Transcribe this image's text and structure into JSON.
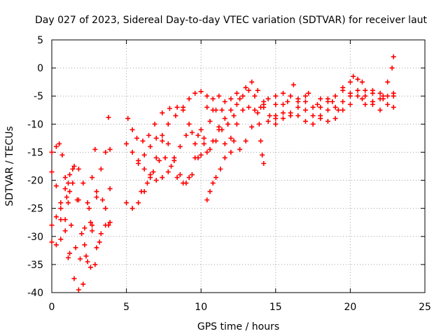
{
  "chart_data": {
    "type": "scatter",
    "title": "Day 027 of 2023, Sidereal Day-to-day VTEC variation (SDTVAR) for receiver laut",
    "xlabel": "GPS time / hours",
    "ylabel": "SDTVAR / TECUs",
    "xlim": [
      0,
      25
    ],
    "ylim": [
      -40,
      5
    ],
    "xticks": [
      "0",
      "5",
      "10",
      "15",
      "20",
      "25"
    ],
    "yticks": [
      "5",
      "0",
      "-5",
      "-10",
      "-15",
      "-20",
      "-25",
      "-30",
      "-35",
      "-40"
    ],
    "grid": true,
    "marker": "+",
    "color": "#ff0000",
    "series": [
      {
        "points": [
          [
            0.0,
            -28.0
          ],
          [
            0.3,
            -26.5
          ],
          [
            0.6,
            -24.0
          ],
          [
            0.9,
            -21.5
          ],
          [
            1.2,
            -19.0
          ],
          [
            1.5,
            -17.5
          ],
          [
            1.8,
            -18.0
          ],
          [
            2.1,
            -20.5
          ],
          [
            2.4,
            -24.0
          ],
          [
            2.7,
            -28.0
          ],
          [
            3.0,
            -32.0
          ],
          [
            3.3,
            -29.5
          ],
          [
            3.6,
            -28.0
          ],
          [
            3.9,
            -27.5
          ]
        ]
      },
      {
        "points": [
          [
            0.0,
            -18.5
          ],
          [
            0.3,
            -21.0
          ],
          [
            0.6,
            -25.0
          ],
          [
            0.9,
            -29.0
          ],
          [
            1.2,
            -33.0
          ],
          [
            1.5,
            -37.5
          ],
          [
            1.8,
            -39.5
          ],
          [
            2.1,
            -38.5
          ],
          [
            2.4,
            -34.5
          ],
          [
            2.7,
            -29.0
          ],
          [
            3.0,
            -23.0
          ],
          [
            3.3,
            -18.0
          ],
          [
            3.6,
            -15.0
          ],
          [
            3.9,
            -14.5
          ]
        ]
      },
      {
        "points": [
          [
            0.0,
            -31.0
          ],
          [
            0.3,
            -31.5
          ],
          [
            0.6,
            -30.5
          ],
          [
            0.9,
            -27.0
          ],
          [
            1.2,
            -22.0
          ],
          [
            1.4,
            -18.0
          ],
          [
            1.7,
            -23.5
          ],
          [
            2.0,
            -29.5
          ],
          [
            2.3,
            -33.5
          ],
          [
            2.6,
            -35.5
          ],
          [
            2.9,
            -35.0
          ],
          [
            3.2,
            -31.0
          ],
          [
            3.6,
            -25.0
          ],
          [
            3.9,
            -21.5
          ]
        ]
      },
      {
        "points": [
          [
            0.0,
            -15.0
          ],
          [
            0.3,
            -14.0
          ],
          [
            0.5,
            -13.5
          ],
          [
            0.7,
            -15.5
          ],
          [
            0.9,
            -19.5
          ],
          [
            1.1,
            -24.0
          ],
          [
            1.3,
            -28.0
          ],
          [
            1.6,
            -32.0
          ],
          [
            1.9,
            -34.0
          ],
          [
            2.2,
            -31.5
          ],
          [
            2.5,
            -25.0
          ],
          [
            2.7,
            -19.5
          ],
          [
            2.9,
            -14.5
          ]
        ]
      },
      {
        "points": [
          [
            0.6,
            -27.0
          ],
          [
            1.0,
            -23.0
          ],
          [
            1.4,
            -20.5
          ],
          [
            1.8,
            -23.5
          ],
          [
            2.2,
            -28.5
          ],
          [
            2.6,
            -27.5
          ],
          [
            3.0,
            -22.0
          ],
          [
            3.4,
            -23.5
          ],
          [
            3.8,
            -28.0
          ]
        ]
      },
      {
        "points": [
          [
            1.1,
            -20.5
          ],
          [
            1.1,
            -33.8
          ],
          [
            3.8,
            -8.8
          ]
        ]
      },
      {
        "points": [
          [
            5.0,
            -24.0
          ],
          [
            5.4,
            -25.0
          ],
          [
            5.8,
            -24.0
          ],
          [
            6.2,
            -22.0
          ],
          [
            6.6,
            -19.0
          ],
          [
            7.0,
            -16.0
          ],
          [
            7.4,
            -13.0
          ],
          [
            7.8,
            -10.0
          ],
          [
            8.3,
            -8.5
          ],
          [
            8.8,
            -7.0
          ],
          [
            9.2,
            -5.5
          ],
          [
            9.6,
            -4.5
          ],
          [
            10.0,
            -4.2
          ],
          [
            10.4,
            -5.0
          ],
          [
            10.8,
            -7.5
          ],
          [
            11.2,
            -10.5
          ],
          [
            11.6,
            -13.5
          ],
          [
            12.0,
            -15.0
          ]
        ]
      },
      {
        "points": [
          [
            5.0,
            -13.5
          ],
          [
            5.4,
            -15.0
          ],
          [
            5.8,
            -16.5
          ],
          [
            6.2,
            -18.0
          ],
          [
            6.6,
            -19.5
          ],
          [
            7.0,
            -20.0
          ],
          [
            7.4,
            -19.5
          ],
          [
            7.8,
            -18.5
          ],
          [
            8.2,
            -16.5
          ],
          [
            8.6,
            -14.0
          ],
          [
            9.0,
            -12.0
          ],
          [
            9.4,
            -11.5
          ],
          [
            9.8,
            -12.0
          ],
          [
            10.2,
            -13.5
          ],
          [
            10.6,
            -14.5
          ],
          [
            11.0,
            -13.0
          ],
          [
            11.4,
            -11.0
          ],
          [
            11.8,
            -10.0
          ],
          [
            12.2,
            -8.5
          ],
          [
            12.6,
            -5.5
          ],
          [
            13.0,
            -3.5
          ],
          [
            13.4,
            -2.5
          ],
          [
            13.8,
            -4.0
          ],
          [
            14.2,
            -6.5
          ],
          [
            14.6,
            -8.5
          ],
          [
            15.0,
            -9.0
          ]
        ]
      },
      {
        "points": [
          [
            5.1,
            -9.0
          ],
          [
            5.4,
            -11.0
          ],
          [
            5.7,
            -12.5
          ],
          [
            6.1,
            -13.0
          ],
          [
            6.5,
            -12.0
          ],
          [
            6.9,
            -10.0
          ],
          [
            7.4,
            -8.0
          ],
          [
            7.9,
            -7.2
          ],
          [
            8.4,
            -7.0
          ],
          [
            8.8,
            -7.5
          ],
          [
            9.2,
            -10.0
          ],
          [
            9.6,
            -13.5
          ],
          [
            10.0,
            -15.5
          ],
          [
            10.4,
            -15.0
          ],
          [
            10.8,
            -13.0
          ],
          [
            11.2,
            -11.0
          ],
          [
            11.6,
            -9.0
          ],
          [
            12.0,
            -7.5
          ],
          [
            12.4,
            -6.5
          ],
          [
            12.8,
            -5.0
          ],
          [
            13.2,
            -4.0
          ],
          [
            13.6,
            -5.0
          ],
          [
            14.0,
            -7.0
          ]
        ]
      },
      {
        "points": [
          [
            5.8,
            -17.0
          ],
          [
            6.2,
            -15.5
          ],
          [
            6.6,
            -14.0
          ],
          [
            7.0,
            -12.5
          ],
          [
            7.4,
            -12.0
          ],
          [
            7.8,
            -13.5
          ],
          [
            8.2,
            -16.0
          ],
          [
            8.6,
            -19.0
          ],
          [
            9.0,
            -20.5
          ],
          [
            9.4,
            -19.0
          ],
          [
            9.8,
            -16.0
          ],
          [
            10.2,
            -12.5
          ],
          [
            10.6,
            -9.5
          ],
          [
            11.0,
            -7.5
          ],
          [
            11.4,
            -7.5
          ],
          [
            11.8,
            -10.0
          ],
          [
            12.2,
            -13.0
          ],
          [
            12.6,
            -14.5
          ],
          [
            13.0,
            -13.0
          ],
          [
            13.4,
            -10.5
          ],
          [
            13.8,
            -8.0
          ],
          [
            14.2,
            -7.0
          ]
        ]
      },
      {
        "points": [
          [
            6.0,
            -22.0
          ],
          [
            6.4,
            -20.5
          ],
          [
            6.8,
            -18.5
          ],
          [
            7.2,
            -16.5
          ],
          [
            7.6,
            -16.0
          ],
          [
            8.0,
            -17.5
          ],
          [
            8.4,
            -19.5
          ],
          [
            8.8,
            -20.5
          ],
          [
            9.2,
            -19.5
          ],
          [
            9.6,
            -16.0
          ],
          [
            10.0,
            -11.0
          ],
          [
            10.4,
            -7.0
          ],
          [
            10.8,
            -5.5
          ],
          [
            11.2,
            -5.0
          ],
          [
            11.6,
            -6.0
          ],
          [
            12.0,
            -5.5
          ],
          [
            12.4,
            -4.5
          ]
        ]
      },
      {
        "points": [
          [
            10.4,
            -23.5
          ],
          [
            10.6,
            -22.0
          ],
          [
            10.8,
            -20.5
          ],
          [
            11.0,
            -19.5
          ],
          [
            11.3,
            -18.0
          ],
          [
            11.6,
            -16.0
          ],
          [
            12.0,
            -12.5
          ],
          [
            12.4,
            -10.0
          ],
          [
            12.8,
            -7.5
          ],
          [
            13.2,
            -7.0
          ],
          [
            13.6,
            -7.5
          ],
          [
            13.9,
            -10.0
          ],
          [
            14.0,
            -13.0
          ],
          [
            14.1,
            -15.5
          ],
          [
            14.2,
            -17.0
          ]
        ]
      },
      {
        "points": [
          [
            14.5,
            -5.5
          ],
          [
            15.0,
            -6.5
          ],
          [
            15.5,
            -8.0
          ],
          [
            16.0,
            -8.5
          ],
          [
            16.5,
            -7.0
          ],
          [
            17.0,
            -6.0
          ],
          [
            17.5,
            -7.0
          ],
          [
            18.0,
            -8.5
          ],
          [
            18.5,
            -9.5
          ],
          [
            19.0,
            -9.0
          ],
          [
            19.5,
            -7.5
          ],
          [
            20.0,
            -5.0
          ],
          [
            20.5,
            -4.0
          ],
          [
            21.0,
            -5.0
          ],
          [
            21.5,
            -6.0
          ],
          [
            22.0,
            -5.5
          ],
          [
            22.5,
            -6.5
          ],
          [
            22.9,
            -7.0
          ]
        ]
      },
      {
        "points": [
          [
            14.5,
            -9.5
          ],
          [
            15.0,
            -8.5
          ],
          [
            15.5,
            -6.5
          ],
          [
            16.0,
            -5.0
          ],
          [
            16.5,
            -6.0
          ],
          [
            17.0,
            -7.5
          ],
          [
            17.5,
            -8.5
          ],
          [
            18.0,
            -7.0
          ],
          [
            18.5,
            -5.5
          ],
          [
            19.0,
            -5.0
          ],
          [
            19.5,
            -4.0
          ],
          [
            20.0,
            -2.5
          ],
          [
            20.5,
            -2.0
          ],
          [
            21.0,
            -4.0
          ],
          [
            21.5,
            -6.5
          ],
          [
            22.0,
            -7.5
          ],
          [
            22.5,
            -5.0
          ],
          [
            22.9,
            -4.5
          ]
        ]
      },
      {
        "points": [
          [
            15.0,
            -10.0
          ],
          [
            15.5,
            -9.0
          ],
          [
            16.0,
            -8.0
          ],
          [
            16.5,
            -8.5
          ],
          [
            17.0,
            -9.5
          ],
          [
            17.5,
            -10.0
          ],
          [
            18.0,
            -9.0
          ],
          [
            18.5,
            -7.5
          ],
          [
            19.0,
            -7.0
          ],
          [
            19.5,
            -6.0
          ],
          [
            20.0,
            -4.5
          ],
          [
            20.5,
            -5.0
          ],
          [
            21.0,
            -6.5
          ],
          [
            21.5,
            -6.0
          ],
          [
            22.0,
            -4.5
          ],
          [
            22.5,
            -2.5
          ],
          [
            22.8,
            0.0
          ],
          [
            22.9,
            2.0
          ]
        ]
      },
      {
        "points": [
          [
            14.2,
            -6.0
          ],
          [
            15.0,
            -5.0
          ],
          [
            15.8,
            -6.0
          ],
          [
            16.5,
            -5.5
          ],
          [
            17.2,
            -4.5
          ],
          [
            18.0,
            -5.5
          ],
          [
            18.8,
            -6.0
          ],
          [
            19.5,
            -3.5
          ],
          [
            20.2,
            -1.5
          ],
          [
            20.8,
            -2.5
          ],
          [
            21.5,
            -4.5
          ],
          [
            22.2,
            -5.0
          ]
        ]
      },
      {
        "points": [
          [
            15.5,
            -4.5
          ],
          [
            16.2,
            -3.0
          ],
          [
            17.0,
            -5.0
          ],
          [
            17.8,
            -6.5
          ],
          [
            18.5,
            -6.0
          ],
          [
            19.2,
            -7.5
          ],
          [
            20.0,
            -6.5
          ],
          [
            20.8,
            -5.5
          ],
          [
            21.5,
            -4.0
          ],
          [
            22.2,
            -5.5
          ],
          [
            22.9,
            -5.0
          ]
        ]
      }
    ]
  }
}
